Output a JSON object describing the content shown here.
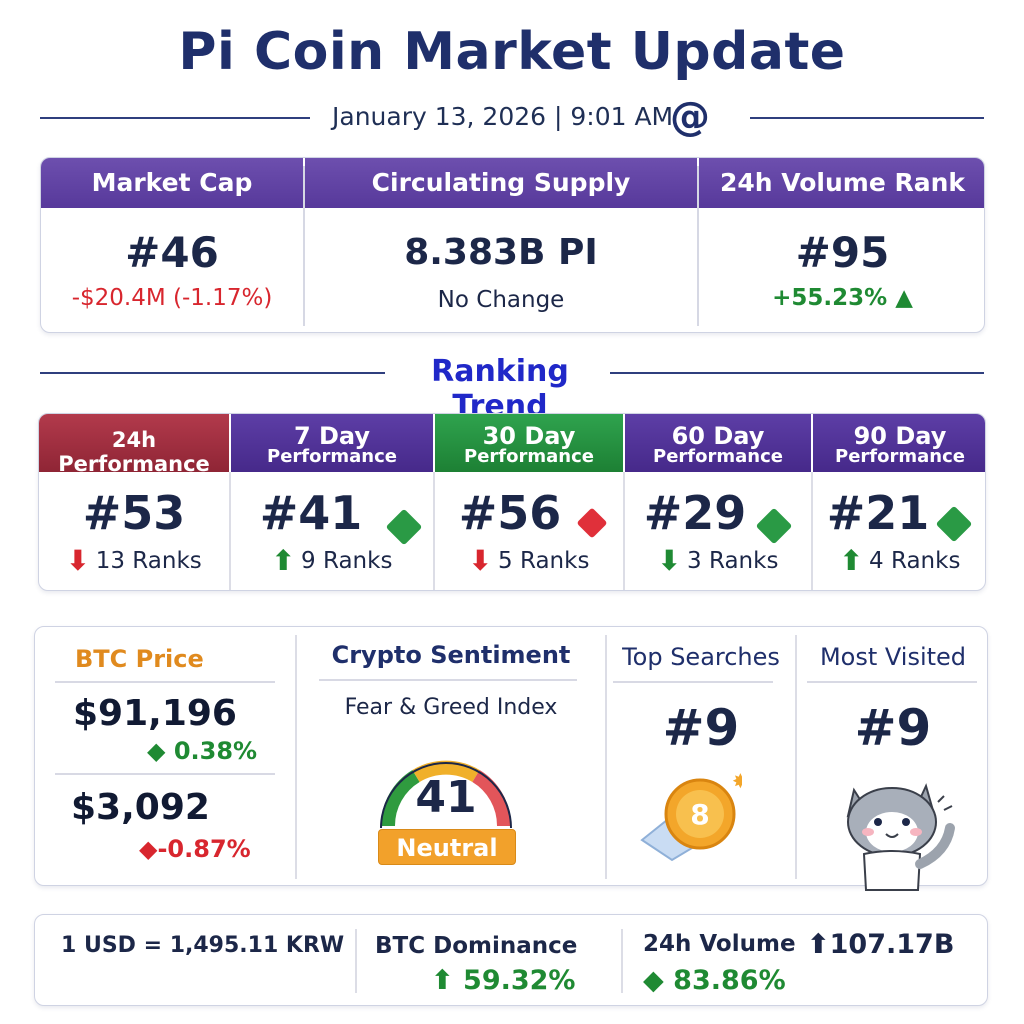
{
  "header": {
    "title": "Pi Coin Market Update",
    "date": "January 13, 2026 | 9:01 AM",
    "icon": "at-icon"
  },
  "stats": [
    {
      "label": "Market Cap",
      "value": "#46",
      "change": "-$20.4M (-1.17%)",
      "trend": "down"
    },
    {
      "label": "Circulating Supply",
      "value": "8.383B PI",
      "change": "No Change",
      "trend": "flat"
    },
    {
      "label": "24h Volume Rank",
      "value": "#95",
      "change": "+55.23%",
      "trend": "up"
    }
  ],
  "ranking": {
    "title": "Ranking Trend",
    "items": [
      {
        "line1": "24h Performance",
        "line2": "",
        "rank": "#53",
        "change": "13 Ranks",
        "trend": "down"
      },
      {
        "line1": "7 Day",
        "line2": "Performance",
        "rank": "#41",
        "change": "9 Ranks",
        "trend": "up"
      },
      {
        "line1": "30 Day",
        "line2": "Performance",
        "rank": "#56",
        "change": "5 Ranks",
        "trend": "down"
      },
      {
        "line1": "60 Day",
        "line2": "Performance",
        "rank": "#29",
        "change": "3 Ranks",
        "trend": "down"
      },
      {
        "line1": "90 Day",
        "line2": "Performance",
        "rank": "#21",
        "change": "4 Ranks",
        "trend": "up"
      }
    ]
  },
  "btc": {
    "title": "BTC Price",
    "price1": "$91,196",
    "change1": "0.38%",
    "price2": "$3,092",
    "change2": "-0.87%"
  },
  "sentiment": {
    "title": "Crypto Sentiment",
    "subtitle": "Fear & Greed Index",
    "value": "41",
    "label": "Neutral",
    "gauge_fraction": 0.41
  },
  "searches": {
    "title": "Top Searches",
    "rank": "#9",
    "badge": "8"
  },
  "visited": {
    "title": "Most Visited",
    "rank": "#9"
  },
  "bottom": {
    "fx": "1 USD = 1,495.11 KRW",
    "dominance_label": "BTC Dominance",
    "dominance_value": "59.32%",
    "volume_label": "24h Volume",
    "volume_amount": "107.17B",
    "volume_change": "83.86%"
  },
  "colors": {
    "up": "#1f8a33",
    "down": "#d8262e",
    "accent": "#57399b"
  }
}
